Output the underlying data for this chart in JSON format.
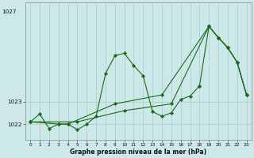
{
  "bg_color": "#cce8e8",
  "grid_color": "#aacccc",
  "line_color": "#1a6b1a",
  "xlabel": "Graphe pression niveau de la mer (hPa)",
  "xlim": [
    -0.5,
    23.5
  ],
  "ylim": [
    1021.3,
    1027.4
  ],
  "yticks": [
    1022,
    1023
  ],
  "ytick_extra": 1027,
  "xticks": [
    0,
    1,
    2,
    3,
    4,
    5,
    6,
    7,
    8,
    9,
    10,
    11,
    12,
    13,
    14,
    15,
    16,
    17,
    18,
    19,
    20,
    21,
    22,
    23
  ],
  "series1": [
    [
      0,
      1022.1
    ],
    [
      1,
      1022.45
    ],
    [
      2,
      1021.8
    ],
    [
      3,
      1022.0
    ],
    [
      4,
      1022.0
    ],
    [
      5,
      1021.75
    ],
    [
      6,
      1022.0
    ],
    [
      7,
      1022.35
    ],
    [
      8,
      1024.25
    ],
    [
      9,
      1025.05
    ],
    [
      10,
      1025.15
    ],
    [
      11,
      1024.6
    ],
    [
      12,
      1024.15
    ],
    [
      13,
      1022.55
    ],
    [
      14,
      1022.35
    ],
    [
      15,
      1022.5
    ],
    [
      16,
      1023.1
    ],
    [
      17,
      1023.25
    ],
    [
      18,
      1023.7
    ]
  ],
  "series2": [
    [
      0,
      1022.1
    ],
    [
      3,
      1022.0
    ],
    [
      4,
      1022.0
    ],
    [
      9,
      1022.9
    ],
    [
      14,
      1023.3
    ],
    [
      19,
      1026.35
    ],
    [
      20,
      1025.85
    ],
    [
      21,
      1025.4
    ],
    [
      22,
      1024.75
    ],
    [
      23,
      1023.3
    ]
  ],
  "series3": [
    [
      0,
      1022.1
    ],
    [
      5,
      1022.1
    ],
    [
      10,
      1022.6
    ],
    [
      15,
      1022.9
    ],
    [
      19,
      1026.35
    ],
    [
      20,
      1025.85
    ],
    [
      21,
      1025.4
    ],
    [
      22,
      1024.75
    ],
    [
      23,
      1023.3
    ]
  ],
  "series4": [
    [
      18,
      1023.7
    ],
    [
      19,
      1026.35
    ],
    [
      20,
      1025.85
    ],
    [
      21,
      1025.4
    ],
    [
      22,
      1024.75
    ],
    [
      23,
      1023.3
    ]
  ]
}
